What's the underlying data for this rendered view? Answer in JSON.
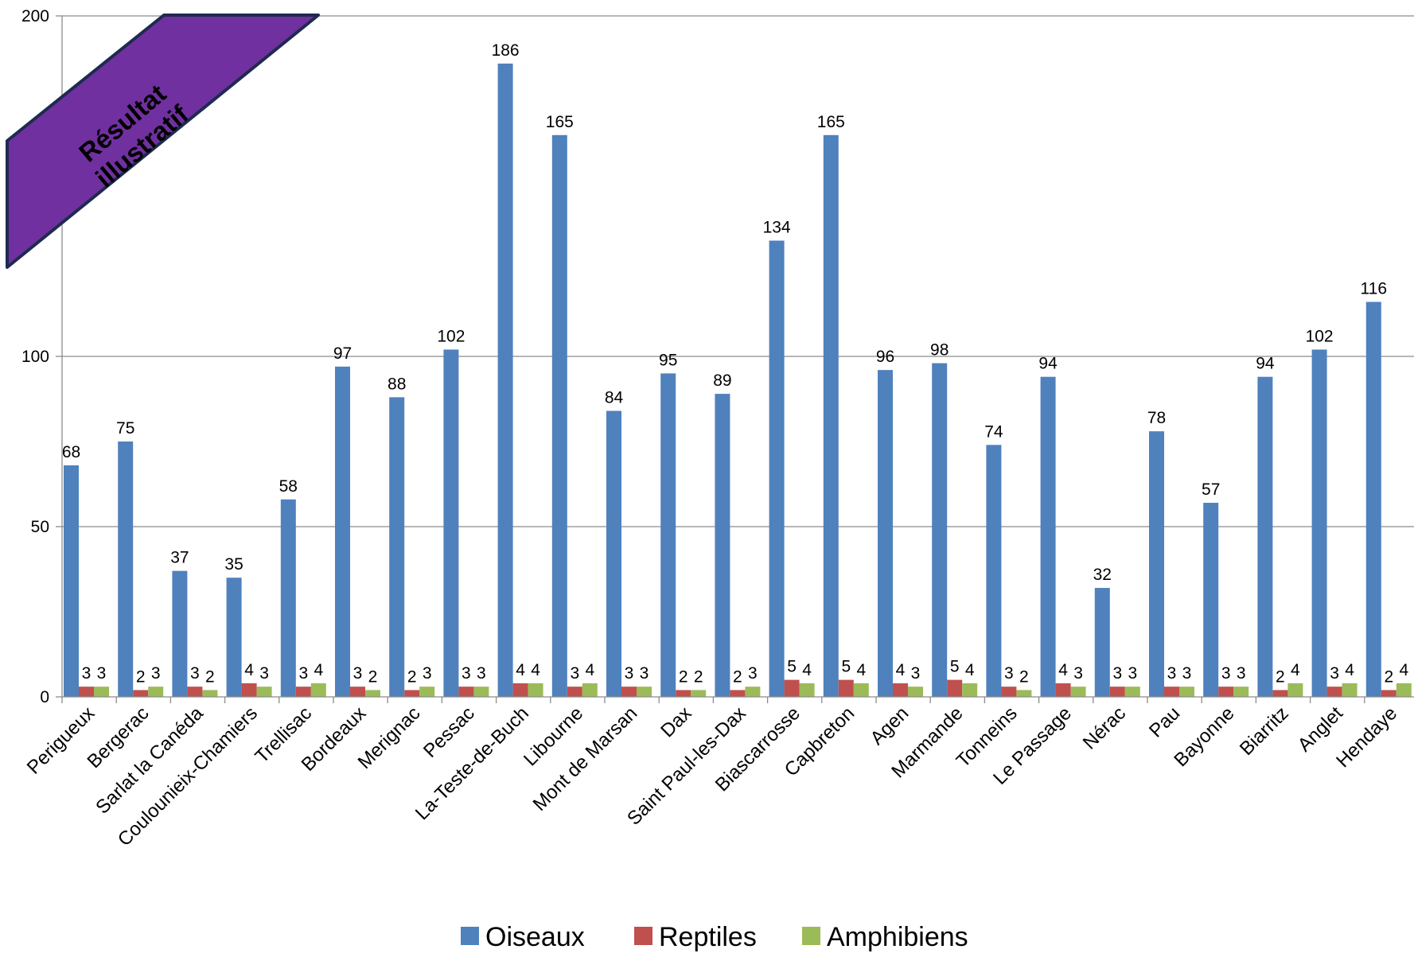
{
  "chart_data": {
    "type": "bar",
    "title": "",
    "xlabel": "",
    "ylabel": "",
    "ylim": [
      0,
      200
    ],
    "yticks": [
      0,
      50,
      100,
      200
    ],
    "grid": true,
    "legend_position": "bottom",
    "categories": [
      "Perigueux",
      "Bergerac",
      "Sarlat la Canéda",
      "Coulounieix-Chamiers",
      "Trellisac",
      "Bordeaux",
      "Merignac",
      "Pessac",
      "La-Teste-de-Buch",
      "Libourne",
      "Mont de Marsan",
      "Dax",
      "Saint Paul-les-Dax",
      "Biascarrosse",
      "Capbreton",
      "Agen",
      "Marmande",
      "Tonneins",
      "Le Passage",
      "Nérac",
      "Pau",
      "Bayonne",
      "Biarritz",
      "Anglet",
      "Hendaye"
    ],
    "series": [
      {
        "name": "Oiseaux",
        "color": "#4F81BD",
        "values": [
          68,
          75,
          37,
          35,
          58,
          97,
          88,
          102,
          186,
          165,
          84,
          95,
          89,
          134,
          165,
          96,
          98,
          74,
          94,
          32,
          78,
          57,
          94,
          102,
          116
        ]
      },
      {
        "name": "Reptiles",
        "color": "#C0504D",
        "values": [
          3,
          2,
          3,
          4,
          3,
          3,
          2,
          3,
          4,
          3,
          3,
          2,
          2,
          5,
          5,
          4,
          5,
          3,
          4,
          3,
          3,
          3,
          2,
          3,
          2
        ]
      },
      {
        "name": "Amphibiens",
        "color": "#9BBB59",
        "values": [
          3,
          3,
          2,
          3,
          4,
          2,
          3,
          3,
          4,
          4,
          3,
          2,
          3,
          4,
          4,
          3,
          4,
          2,
          3,
          3,
          3,
          3,
          4,
          4,
          4
        ]
      }
    ]
  },
  "banner": {
    "line1": "Résultat",
    "line2": "illustratif",
    "fill": "#7030A0",
    "border": "#1F2A50"
  }
}
